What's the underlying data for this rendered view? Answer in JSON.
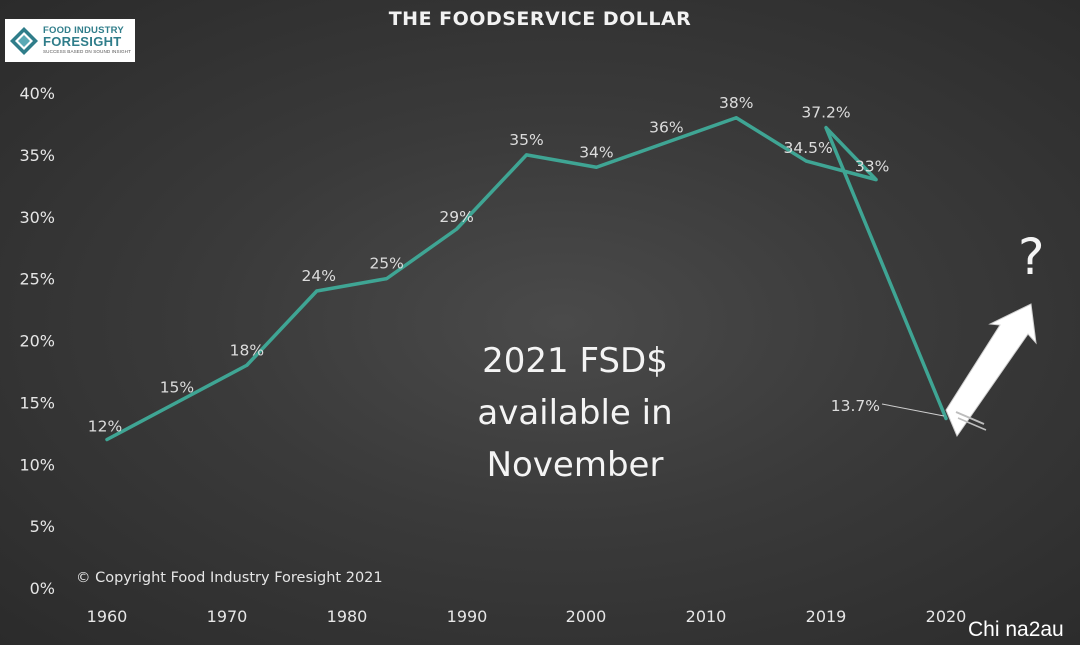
{
  "title": "THE FOODSERVICE DOLLAR",
  "logo": {
    "line1": "FOOD INDUSTRY",
    "line2": "FORESIGHT",
    "line3": "SUCCESS BASED ON SOUND INSIGHT"
  },
  "annotation": {
    "line1": "2021 FSD$",
    "line2": "available in",
    "line3": "November"
  },
  "question_mark": "?",
  "copyright": "© Copyright Food Industry Foresight 2021",
  "watermark": "Chi na2au",
  "colors": {
    "line": "#3fa594",
    "arrow_fill": "#ffffff"
  },
  "chart_data": {
    "type": "line",
    "title": "THE FOODSERVICE DOLLAR",
    "x": [
      1960,
      1965,
      1970,
      1975,
      1980,
      1985,
      1990,
      1995,
      2000,
      2005,
      2010,
      2015,
      2019,
      2020
    ],
    "values": [
      12,
      15,
      18,
      24,
      25,
      29,
      35,
      34,
      36,
      38,
      34.5,
      33,
      37.2,
      13.7
    ],
    "data_labels": [
      "12%",
      "15%",
      "18%",
      "24%",
      "25%",
      "29%",
      "35%",
      "34%",
      "36%",
      "38%",
      "34.5%",
      "33%",
      "37.2%",
      "13.7%"
    ],
    "x_tick_labels": [
      "1960",
      "1970",
      "1980",
      "1990",
      "2000",
      "2010",
      "2019",
      "2020"
    ],
    "y_tick_labels": [
      "0%",
      "5%",
      "10%",
      "15%",
      "20%",
      "25%",
      "30%",
      "35%",
      "40%"
    ],
    "ylim": [
      0,
      40
    ],
    "grid": false,
    "legend": "none"
  }
}
